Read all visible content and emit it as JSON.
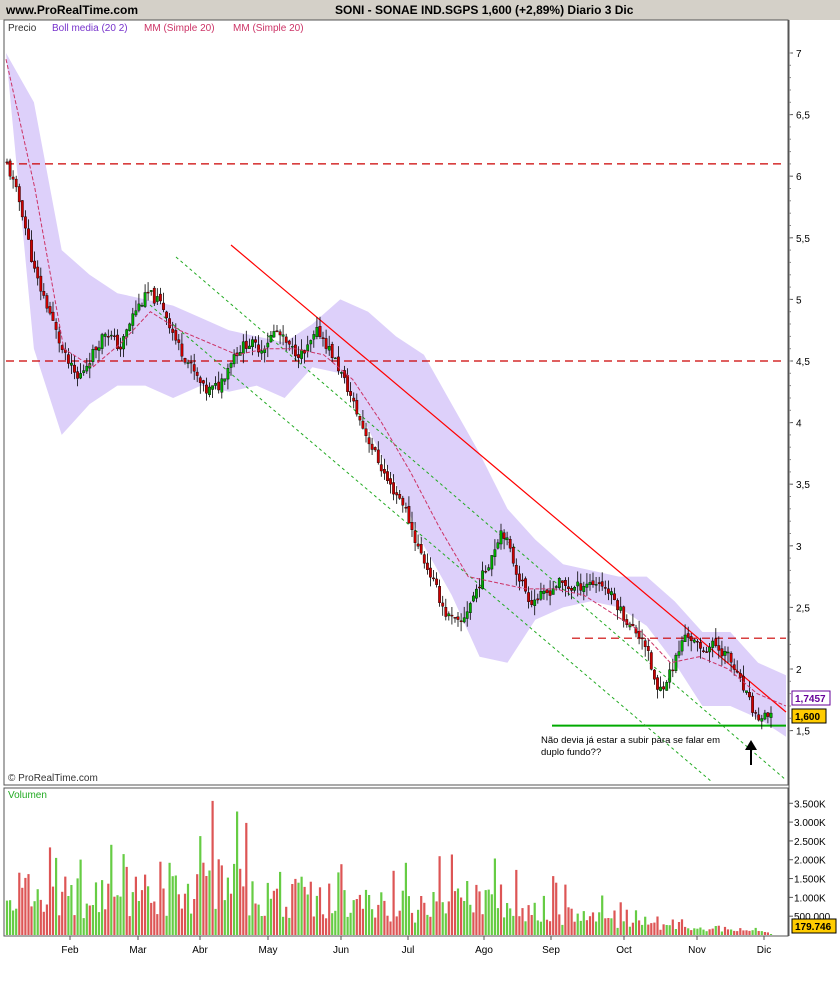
{
  "header": {
    "site": "www.ProRealTime.com",
    "title": "SONI - SONAE IND.SGPS     1,600 (+2,89%)    Diario  3 Dic"
  },
  "legend": {
    "precio": "Precio",
    "boll": "Boll media (20 2)",
    "mm1": "MM (Simple 20)",
    "mm2": "MM (Simple 20)"
  },
  "copyright": "© ProRealTime.com",
  "volume_label": "Volumen",
  "annotation": [
    "Não devia já estar a subir para se falar em",
    "duplo fundo??"
  ],
  "colors": {
    "up": "#00aa00",
    "down": "#cc0000",
    "band": "#ddd0fa",
    "ma": "#cc3366",
    "trend": "#ff0000",
    "channel": "#22aa22",
    "support": "#00aa00",
    "price_tag": "#ffcc00",
    "ma_tag": "#660099"
  },
  "chart_data": [
    {
      "type": "candlestick",
      "series_name": "Precio",
      "x": [
        "Feb",
        "Mar",
        "Abr",
        "May",
        "Jun",
        "Jul",
        "Ago",
        "Sep",
        "Oct",
        "Nov",
        "Dic"
      ],
      "ylim": [
        1.2,
        7.2
      ],
      "yticks": [
        "7",
        "6,5",
        "6",
        "5,5",
        "5",
        "4,5",
        "4",
        "3,5",
        "3",
        "2,5",
        "2",
        "1,5"
      ],
      "close_path": [
        6.1,
        5.75,
        5.2,
        4.9,
        4.55,
        4.35,
        4.55,
        4.75,
        4.6,
        4.9,
        5.05,
        4.95,
        4.65,
        4.45,
        4.25,
        4.3,
        4.55,
        4.65,
        4.6,
        4.75,
        4.6,
        4.55,
        4.75,
        4.55,
        4.3,
        4.0,
        3.75,
        3.5,
        3.35,
        3.0,
        2.75,
        2.45,
        2.35,
        2.6,
        2.85,
        3.15,
        2.8,
        2.55,
        2.6,
        2.7,
        2.65,
        2.7,
        2.7,
        2.55,
        2.35,
        2.25,
        1.8,
        2.0,
        2.3,
        2.15,
        2.2,
        2.1,
        1.85,
        1.6,
        1.6
      ],
      "bollinger_upper": [
        7.0,
        6.6,
        5.4,
        5.2,
        5.05,
        5.0,
        4.95,
        4.85,
        4.75,
        4.7,
        4.65,
        4.8,
        5.0,
        4.9,
        4.7,
        4.55,
        4.15,
        3.75,
        3.3,
        3.05,
        2.85,
        2.8,
        2.75,
        2.75,
        2.55,
        2.3,
        2.3,
        2.05,
        1.95
      ],
      "bollinger_lower": [
        7.0,
        4.6,
        3.9,
        4.15,
        4.3,
        4.3,
        4.2,
        4.3,
        4.25,
        4.3,
        4.2,
        4.45,
        4.4,
        3.95,
        3.5,
        3.0,
        2.6,
        2.1,
        2.05,
        2.4,
        2.5,
        2.55,
        2.5,
        2.35,
        2.05,
        1.7,
        1.7,
        1.6,
        1.45
      ],
      "moving_average": [
        6.95,
        5.9,
        4.6,
        4.45,
        4.65,
        4.9,
        4.75,
        4.65,
        4.55,
        4.6,
        4.6,
        4.55,
        4.35,
        4.0,
        3.6,
        3.15,
        2.75,
        2.7,
        2.65,
        2.65,
        2.6,
        2.45,
        2.3,
        2.05,
        2.1,
        2.0,
        1.8,
        1.7
      ],
      "hlines": [
        6.1,
        4.5,
        2.25,
        1.54
      ],
      "last_price": "1,600",
      "ma_value": "1,7457",
      "price_change": "+2,89%"
    },
    {
      "type": "bar",
      "series_name": "Volumen",
      "ylim": [
        0,
        3800000
      ],
      "yticks": [
        "3.500K",
        "3.000K",
        "2.500K",
        "2.000K",
        "1.500K",
        "1.000K",
        "500.000"
      ],
      "last_value": "179.746",
      "peaks": [
        3300000,
        2600000,
        3200000,
        3700000,
        2800000,
        2100000,
        2200000,
        2700000,
        1400000,
        1200000,
        500000,
        180000
      ]
    }
  ]
}
